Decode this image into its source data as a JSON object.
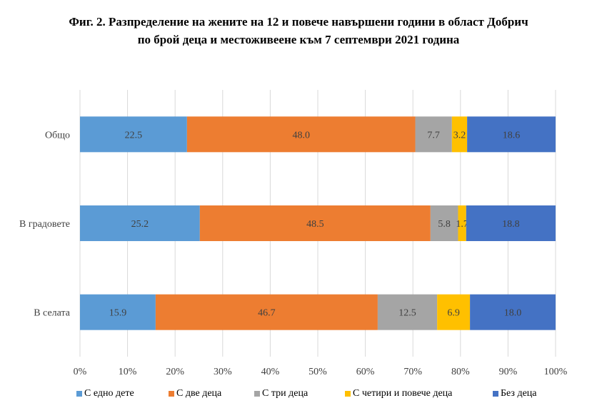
{
  "title_line1": "Фиг. 2. Разпределение на жените на 12 и повече навършени години в област Добрич",
  "title_line2": "по брой деца и местоживеене към 7 септември 2021 година",
  "chart_data": {
    "type": "bar",
    "orientation": "horizontal",
    "stacked": "percent",
    "categories": [
      "Общо",
      "В градовете",
      "В селата"
    ],
    "series": [
      {
        "name": "С едно дете",
        "color": "#5B9BD5",
        "values": [
          22.5,
          25.2,
          15.9
        ]
      },
      {
        "name": "С две деца",
        "color": "#ED7D31",
        "values": [
          48.0,
          48.5,
          46.7
        ]
      },
      {
        "name": "С три деца",
        "color": "#A5A5A5",
        "values": [
          7.7,
          5.8,
          12.5
        ]
      },
      {
        "name": "С четири и повече деца",
        "color": "#FFC000",
        "values": [
          3.2,
          1.7,
          6.9
        ]
      },
      {
        "name": "Без деца",
        "color": "#4472C4",
        "values": [
          18.6,
          18.8,
          18.0
        ]
      }
    ],
    "data_labels": [
      [
        "22.5",
        "48.0",
        "7.7",
        "3.2",
        "18.6"
      ],
      [
        "25.2",
        "48.5",
        "5.8",
        "1.7",
        "18.8"
      ],
      [
        "15.9",
        "46.7",
        "12.5",
        "6.9",
        "18.0"
      ]
    ],
    "xticks": [
      "0%",
      "10%",
      "20%",
      "30%",
      "40%",
      "50%",
      "60%",
      "70%",
      "80%",
      "90%",
      "100%"
    ],
    "xlim": [
      0,
      100
    ],
    "grid": true,
    "legend_position": "bottom"
  }
}
